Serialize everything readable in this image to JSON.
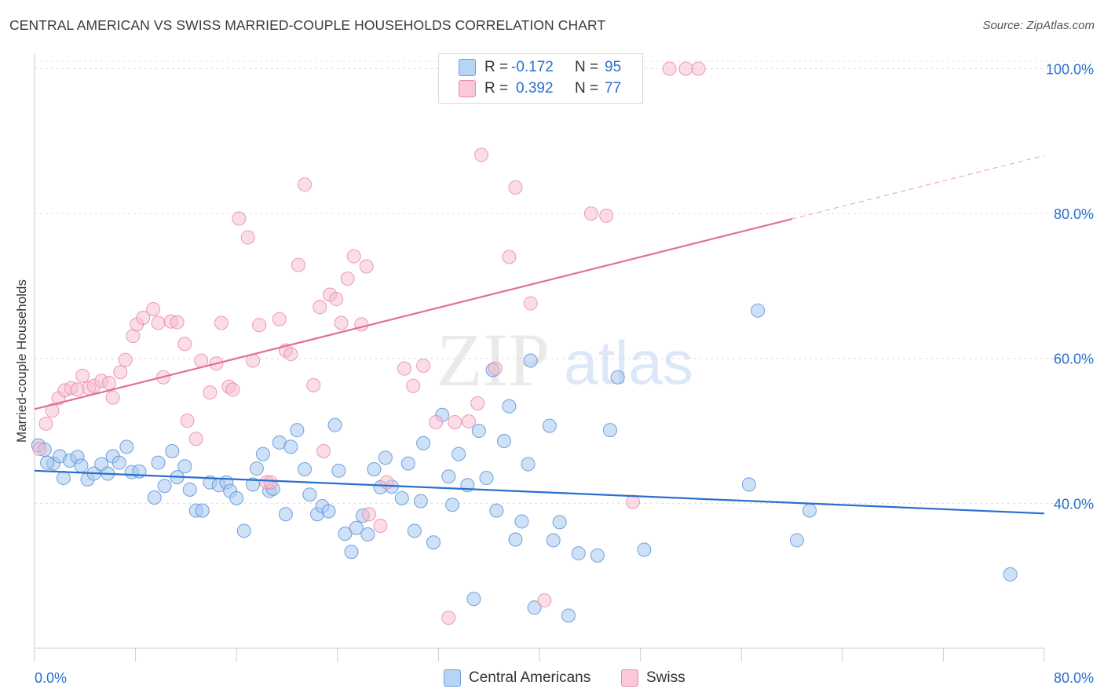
{
  "header": {
    "title": "CENTRAL AMERICAN VS SWISS MARRIED-COUPLE HOUSEHOLDS CORRELATION CHART",
    "source": "Source: ZipAtlas.com"
  },
  "watermark": {
    "zip": "ZIP",
    "atlas": "atlas"
  },
  "legend_stats": [
    {
      "r_label": "R =",
      "r_value": "-0.172",
      "n_label": "N =",
      "n_value": "95",
      "color": "#a8c8f0",
      "stroke": "#6a9fd8"
    },
    {
      "r_label": "R =",
      "r_value": "0.392",
      "n_label": "N =",
      "n_value": "77",
      "color": "#f7bcd0",
      "stroke": "#e88aab"
    }
  ],
  "chart_data": {
    "type": "scatter",
    "title": "CENTRAL AMERICAN VS SWISS MARRIED-COUPLE HOUSEHOLDS CORRELATION CHART",
    "xlabel": "",
    "ylabel": "Married-couple Households",
    "xlim": [
      0,
      80
    ],
    "ylim": [
      20,
      102
    ],
    "x_tick_labels": [
      "0.0%",
      "80.0%"
    ],
    "y_tick_values": [
      40,
      60,
      80,
      100
    ],
    "y_tick_labels": [
      "40.0%",
      "60.0%",
      "80.0%",
      "100.0%"
    ],
    "grid": true,
    "legend_position": "bottom-center",
    "colors": {
      "blue": "#6a9fd8",
      "blue_line": "#2a6fcf",
      "pink": "#e88aab",
      "pink_line": "#e07098"
    },
    "series": [
      {
        "name": "Central Americans",
        "points": [
          [
            0.3,
            48.0
          ],
          [
            0.8,
            47.4
          ],
          [
            1.5,
            45.5
          ],
          [
            2.0,
            46.5
          ],
          [
            2.3,
            43.5
          ],
          [
            2.8,
            45.9
          ],
          [
            3.4,
            46.4
          ],
          [
            3.7,
            45.2
          ],
          [
            4.2,
            43.3
          ],
          [
            4.7,
            44.1
          ],
          [
            5.3,
            45.4
          ],
          [
            5.8,
            44.1
          ],
          [
            6.2,
            46.5
          ],
          [
            6.7,
            45.6
          ],
          [
            7.3,
            47.8
          ],
          [
            7.7,
            44.3
          ],
          [
            8.3,
            44.4
          ],
          [
            9.5,
            40.8
          ],
          [
            9.8,
            45.6
          ],
          [
            10.3,
            42.4
          ],
          [
            10.9,
            47.2
          ],
          [
            11.3,
            43.6
          ],
          [
            11.9,
            45.1
          ],
          [
            12.3,
            41.9
          ],
          [
            12.8,
            39.0
          ],
          [
            13.3,
            39.0
          ],
          [
            13.9,
            42.9
          ],
          [
            14.6,
            42.5
          ],
          [
            15.2,
            42.9
          ],
          [
            15.5,
            41.7
          ],
          [
            16.0,
            40.7
          ],
          [
            16.6,
            36.2
          ],
          [
            17.3,
            42.6
          ],
          [
            17.6,
            44.8
          ],
          [
            18.1,
            46.8
          ],
          [
            18.6,
            41.7
          ],
          [
            18.9,
            42.0
          ],
          [
            19.4,
            48.4
          ],
          [
            19.9,
            38.5
          ],
          [
            20.3,
            47.8
          ],
          [
            20.8,
            50.1
          ],
          [
            21.4,
            44.7
          ],
          [
            21.8,
            41.2
          ],
          [
            22.4,
            38.5
          ],
          [
            22.8,
            39.6
          ],
          [
            23.3,
            38.9
          ],
          [
            23.8,
            50.8
          ],
          [
            24.1,
            44.5
          ],
          [
            24.6,
            35.8
          ],
          [
            25.1,
            33.3
          ],
          [
            25.5,
            36.6
          ],
          [
            26.0,
            38.3
          ],
          [
            26.4,
            35.7
          ],
          [
            26.9,
            44.7
          ],
          [
            27.4,
            42.2
          ],
          [
            27.8,
            46.3
          ],
          [
            28.3,
            42.3
          ],
          [
            29.1,
            40.7
          ],
          [
            29.6,
            45.5
          ],
          [
            30.1,
            36.2
          ],
          [
            30.6,
            40.3
          ],
          [
            30.8,
            48.3
          ],
          [
            31.6,
            34.6
          ],
          [
            32.3,
            52.2
          ],
          [
            32.8,
            43.7
          ],
          [
            33.1,
            39.8
          ],
          [
            33.6,
            46.8
          ],
          [
            34.3,
            42.5
          ],
          [
            34.8,
            26.8
          ],
          [
            35.2,
            50.0
          ],
          [
            35.8,
            43.5
          ],
          [
            36.3,
            58.4
          ],
          [
            36.6,
            39.0
          ],
          [
            37.2,
            48.6
          ],
          [
            37.6,
            53.4
          ],
          [
            38.1,
            35.0
          ],
          [
            38.6,
            37.5
          ],
          [
            39.1,
            45.4
          ],
          [
            39.3,
            59.7
          ],
          [
            39.6,
            25.6
          ],
          [
            40.8,
            50.7
          ],
          [
            41.1,
            34.9
          ],
          [
            41.6,
            37.4
          ],
          [
            42.3,
            24.5
          ],
          [
            43.1,
            33.1
          ],
          [
            44.6,
            32.8
          ],
          [
            45.6,
            50.1
          ],
          [
            46.2,
            57.4
          ],
          [
            48.3,
            33.6
          ],
          [
            56.6,
            42.6
          ],
          [
            57.3,
            66.6
          ],
          [
            60.4,
            34.9
          ],
          [
            61.4,
            39.0
          ],
          [
            77.3,
            30.2
          ],
          [
            1.0,
            45.6
          ]
        ]
      },
      {
        "name": "Swiss",
        "points": [
          [
            0.4,
            47.5
          ],
          [
            0.9,
            51.0
          ],
          [
            1.4,
            52.8
          ],
          [
            1.9,
            54.5
          ],
          [
            2.4,
            55.6
          ],
          [
            2.9,
            55.9
          ],
          [
            3.4,
            55.7
          ],
          [
            3.8,
            57.6
          ],
          [
            4.3,
            55.9
          ],
          [
            4.7,
            56.2
          ],
          [
            5.3,
            56.9
          ],
          [
            5.9,
            56.6
          ],
          [
            6.2,
            54.6
          ],
          [
            6.8,
            58.1
          ],
          [
            7.2,
            59.8
          ],
          [
            7.8,
            63.1
          ],
          [
            8.1,
            64.7
          ],
          [
            8.6,
            65.6
          ],
          [
            9.4,
            66.8
          ],
          [
            9.8,
            64.9
          ],
          [
            10.2,
            57.4
          ],
          [
            10.8,
            65.1
          ],
          [
            11.3,
            65.0
          ],
          [
            11.9,
            62.0
          ],
          [
            12.1,
            51.4
          ],
          [
            12.8,
            48.9
          ],
          [
            13.2,
            59.7
          ],
          [
            13.9,
            55.3
          ],
          [
            14.4,
            59.3
          ],
          [
            14.8,
            64.9
          ],
          [
            15.4,
            56.1
          ],
          [
            15.7,
            55.7
          ],
          [
            16.2,
            79.3
          ],
          [
            16.9,
            76.7
          ],
          [
            17.3,
            59.7
          ],
          [
            17.8,
            64.6
          ],
          [
            18.4,
            42.9
          ],
          [
            18.7,
            42.9
          ],
          [
            19.4,
            65.4
          ],
          [
            19.9,
            61.1
          ],
          [
            20.3,
            60.6
          ],
          [
            20.9,
            72.9
          ],
          [
            21.4,
            84.0
          ],
          [
            22.1,
            56.3
          ],
          [
            22.6,
            67.1
          ],
          [
            22.9,
            47.2
          ],
          [
            23.4,
            68.8
          ],
          [
            23.9,
            68.2
          ],
          [
            24.3,
            64.9
          ],
          [
            24.8,
            71.0
          ],
          [
            25.3,
            74.1
          ],
          [
            25.9,
            64.7
          ],
          [
            26.3,
            72.7
          ],
          [
            26.5,
            38.5
          ],
          [
            27.4,
            36.9
          ],
          [
            27.9,
            42.9
          ],
          [
            29.3,
            58.6
          ],
          [
            30.0,
            56.2
          ],
          [
            30.8,
            59.0
          ],
          [
            31.8,
            51.2
          ],
          [
            32.8,
            24.2
          ],
          [
            33.3,
            51.2
          ],
          [
            34.4,
            51.3
          ],
          [
            35.1,
            53.8
          ],
          [
            35.4,
            88.1
          ],
          [
            36.5,
            58.6
          ],
          [
            37.6,
            74.0
          ],
          [
            38.1,
            83.6
          ],
          [
            39.3,
            67.6
          ],
          [
            40.4,
            26.6
          ],
          [
            42.6,
            100.0
          ],
          [
            44.1,
            80.0
          ],
          [
            45.3,
            79.7
          ],
          [
            47.4,
            40.2
          ],
          [
            50.3,
            100.0
          ],
          [
            51.6,
            100.0
          ],
          [
            52.6,
            100.0
          ]
        ]
      }
    ],
    "trend_lines": [
      {
        "series": "Central Americans",
        "x0": 0,
        "y0": 44.5,
        "x1": 80,
        "y1": 38.6,
        "dashed_from": null
      },
      {
        "series": "Swiss",
        "x0": 0,
        "y0": 53.0,
        "x1": 80,
        "y1": 88.0,
        "dashed_from": 60
      }
    ]
  }
}
